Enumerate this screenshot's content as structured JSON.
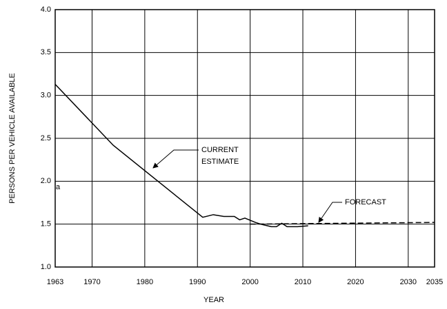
{
  "chart_data": {
    "type": "line",
    "xlabel": "YEAR",
    "ylabel": "PERSONS PER  VEHICLE AVAILABLE",
    "annotations": [
      "CURRENT",
      "ESTIMATE",
      "FORECAST",
      "a"
    ],
    "xlim": [
      1963,
      2035
    ],
    "xticks": [
      1963,
      1970,
      1980,
      1990,
      2000,
      2010,
      2020,
      2030,
      2035
    ],
    "ylim": [
      1,
      4
    ],
    "yticks": [
      {
        "value": 1,
        "label": "1.0"
      },
      1.5,
      {
        "value": 2,
        "label": "2.0"
      },
      2.5,
      {
        "value": 3,
        "label": "3.0"
      },
      3.5,
      {
        "value": 4,
        "label": "4.0"
      }
    ],
    "grid": true,
    "series": [
      {
        "name": "CURRENT ESTIMATE",
        "color": "#000000",
        "dashed": false,
        "x": [
          1963,
          1974,
          1991,
          1993,
          1995,
          1997,
          1998,
          1999,
          2001,
          2002,
          2004,
          2005,
          2006,
          2007,
          2009,
          2011
        ],
        "values": [
          3.13,
          2.42,
          1.58,
          1.61,
          1.59,
          1.59,
          1.55,
          1.57,
          1.52,
          1.5,
          1.47,
          1.47,
          1.51,
          1.47,
          1.47,
          1.48
        ]
      },
      {
        "name": "FORECAST",
        "color": "#000000",
        "dashed": true,
        "x": [
          2000,
          2035
        ],
        "values": [
          1.5,
          1.52
        ]
      }
    ]
  }
}
